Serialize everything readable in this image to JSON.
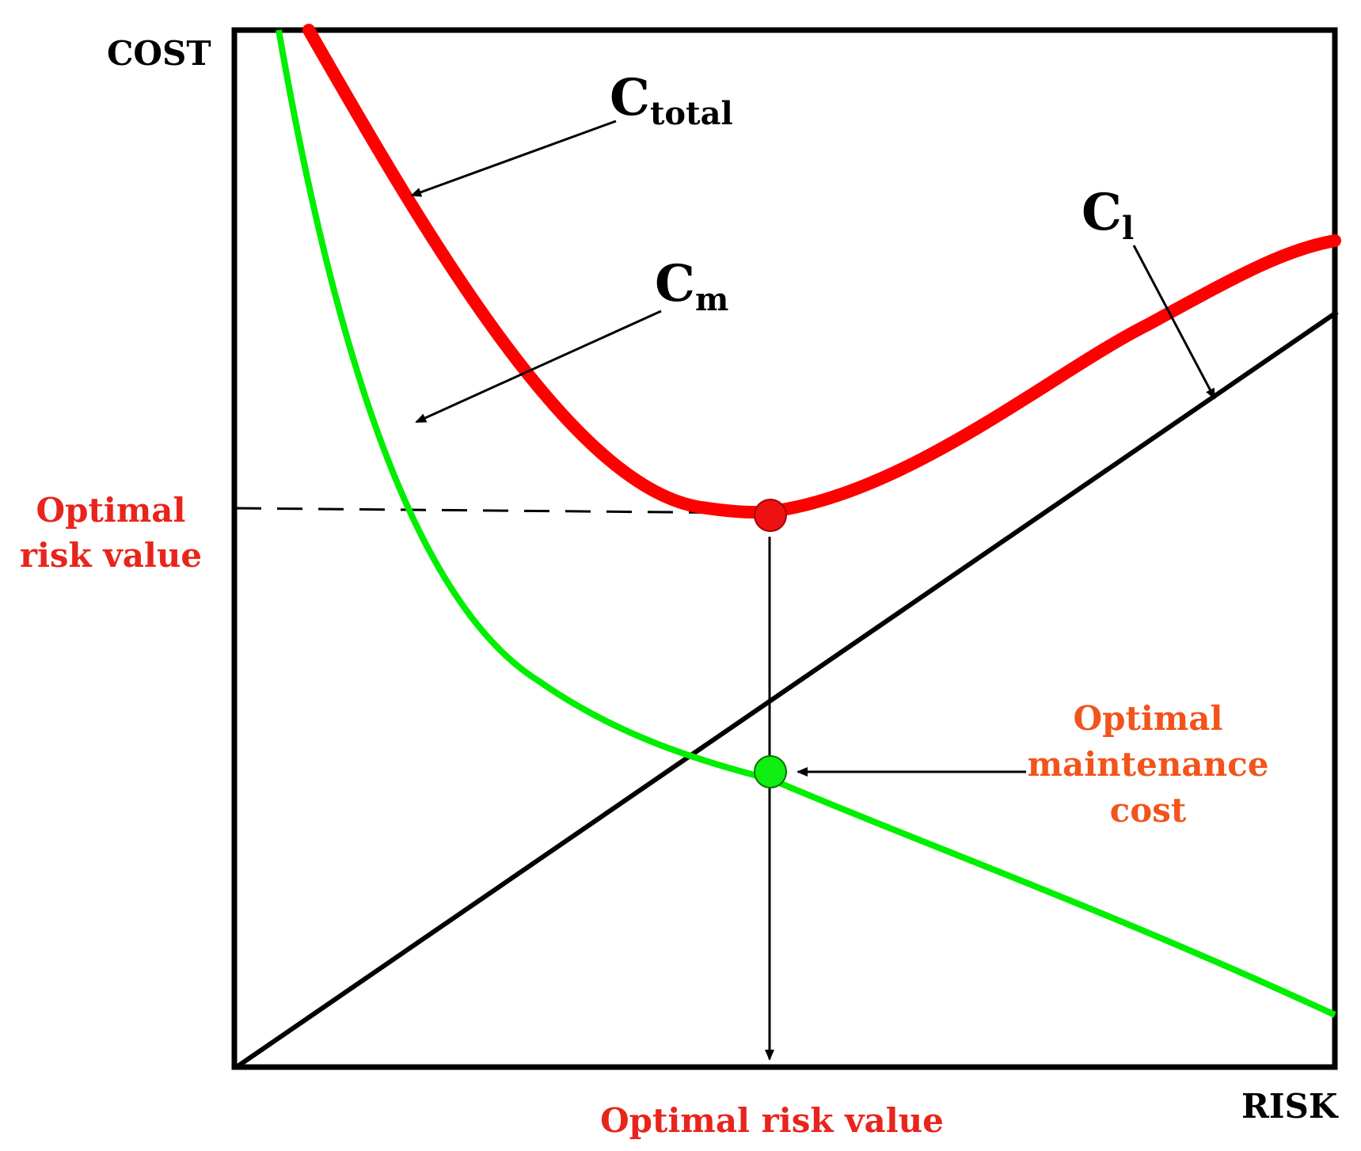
{
  "axes": {
    "y_label": "COST",
    "x_label": "RISK"
  },
  "curves": {
    "total": {
      "main": "C",
      "sub": "total",
      "color": "#ff0000"
    },
    "maintenance": {
      "main": "C",
      "sub": "m",
      "color": "#00ee00"
    },
    "loss": {
      "main": "C",
      "sub": "l",
      "color": "#000000"
    }
  },
  "annotations": {
    "optimal_risk_left_line1": "Optimal",
    "optimal_risk_left_line2": "risk value",
    "optimal_risk_bottom": "Optimal risk value",
    "optimal_maintenance_line1": "Optimal",
    "optimal_maintenance_line2": "maintenance",
    "optimal_maintenance_line3": "cost"
  },
  "colors": {
    "red_label": "#e8251c",
    "orange_label": "#f2541b",
    "total_point": "#ee1111",
    "maintenance_point": "#11ee11"
  }
}
